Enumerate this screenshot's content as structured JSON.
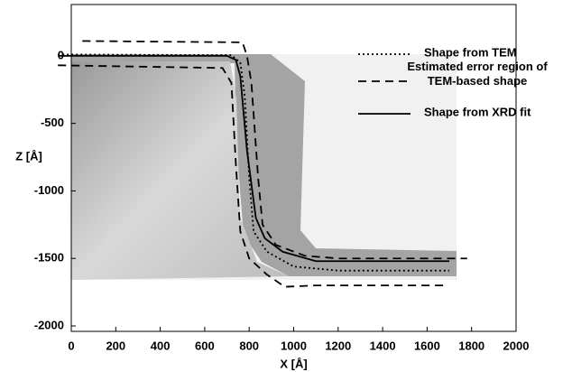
{
  "chart_data": {
    "type": "line",
    "xlabel": "X [Å]",
    "ylabel": "Z [Å]",
    "xlim": [
      0,
      2000
    ],
    "ylim": [
      -2040,
      380
    ],
    "xticks": [
      0,
      200,
      400,
      600,
      800,
      1000,
      1200,
      1400,
      1600,
      1800,
      2000
    ],
    "yticks": [
      0,
      -500,
      -1000,
      -1500,
      -2000
    ],
    "series": [
      {
        "name": "Shape from TEM",
        "color": "#000000",
        "dash": "2,3",
        "x": [
          -60,
          720,
          760,
          780,
          800,
          820,
          880,
          1000,
          1200,
          1700
        ],
        "values": [
          10,
          5,
          -50,
          -300,
          -900,
          -1300,
          -1450,
          -1560,
          -1590,
          -1590
        ]
      },
      {
        "name": "Estimated error region of TEM-based shape",
        "color": "#000000",
        "dash": "9,6",
        "x": [
          50,
          770,
          790,
          810,
          840,
          860,
          920,
          1050,
          1200,
          1780,
          null,
          -60,
          680,
          720,
          740,
          760,
          800,
          880,
          960,
          1100,
          1250,
          1680
        ],
        "values": [
          110,
          100,
          0,
          -200,
          -900,
          -1250,
          -1400,
          -1480,
          -1500,
          -1500,
          null,
          -70,
          -90,
          -200,
          -800,
          -1300,
          -1500,
          -1620,
          -1710,
          -1700,
          -1700,
          -1700
        ]
      },
      {
        "name": "Shape from XRD fit",
        "color": "#000000",
        "dash": "none",
        "x": [
          -60,
          700,
          740,
          760,
          790,
          830,
          870,
          950,
          1100,
          1300,
          1700
        ],
        "values": [
          0,
          0,
          -30,
          -150,
          -700,
          -1200,
          -1350,
          -1450,
          -1520,
          -1520,
          -1520
        ]
      }
    ]
  }
}
